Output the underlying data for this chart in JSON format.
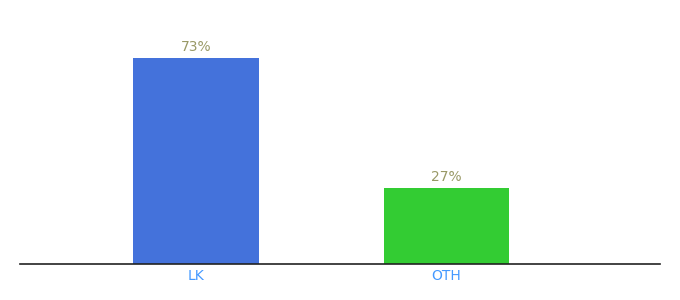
{
  "categories": [
    "LK",
    "OTH"
  ],
  "values": [
    73,
    27
  ],
  "bar_colors": [
    "#4472db",
    "#33cc33"
  ],
  "label_texts": [
    "73%",
    "27%"
  ],
  "label_color": "#999966",
  "xlabel_color": "#4499ff",
  "bar_width": 0.5,
  "ylim": [
    0,
    85
  ],
  "background_color": "#ffffff",
  "label_fontsize": 10,
  "xlabel_fontsize": 10
}
